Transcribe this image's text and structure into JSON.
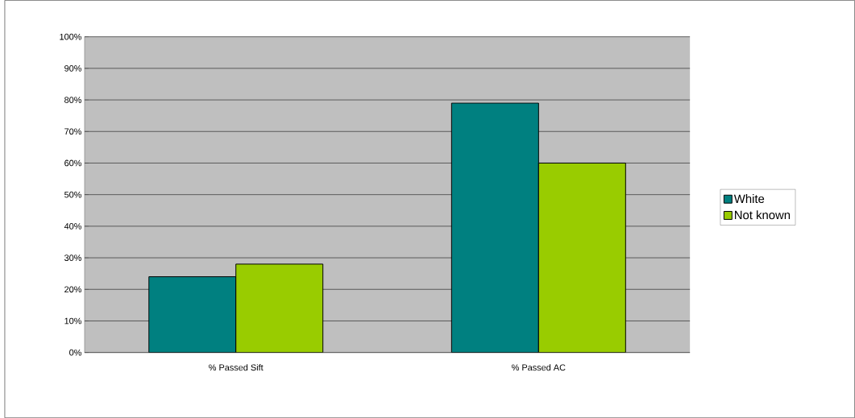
{
  "chart_data": {
    "type": "bar",
    "categories": [
      "% Passed Sift",
      "% Passed AC"
    ],
    "series": [
      {
        "name": "White",
        "color": "#008080",
        "values": [
          24,
          79
        ]
      },
      {
        "name": "Not known",
        "color": "#99cc00",
        "values": [
          28,
          60
        ]
      }
    ],
    "ylim": [
      0,
      100
    ],
    "yticks": [
      {
        "value": 0,
        "label": "0%"
      },
      {
        "value": 10,
        "label": "10%"
      },
      {
        "value": 20,
        "label": "20%"
      },
      {
        "value": 30,
        "label": "30%"
      },
      {
        "value": 40,
        "label": "40%"
      },
      {
        "value": 50,
        "label": "50%"
      },
      {
        "value": 60,
        "label": "60%"
      },
      {
        "value": 70,
        "label": "70%"
      },
      {
        "value": 80,
        "label": "80%"
      },
      {
        "value": 90,
        "label": "90%"
      },
      {
        "value": 100,
        "label": "100%"
      }
    ],
    "grid": "y",
    "legend": "right"
  }
}
